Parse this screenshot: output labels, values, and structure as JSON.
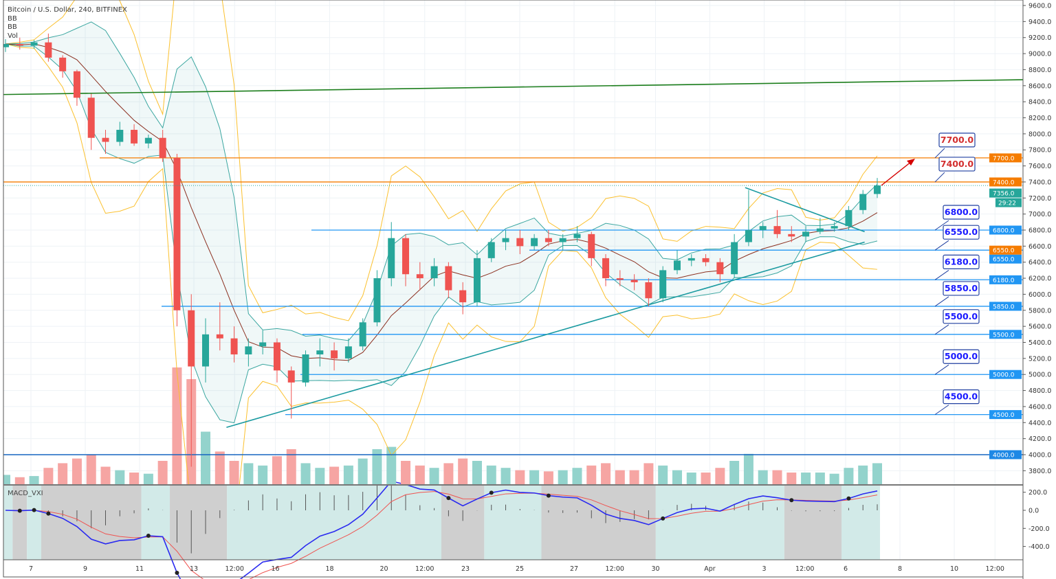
{
  "header": {
    "title": "Bitcoin / U.S. Dollar, 240, BITFINEX",
    "indicators": [
      "BB",
      "BB",
      "Vol"
    ],
    "macd_label": "MACD_VXI"
  },
  "colors": {
    "up": "#26a69a",
    "down": "#ef5350",
    "bb_basis": "#8b2f1f",
    "bb_inner": "#3aa6a0",
    "bb_outer": "#fbc02d",
    "resistance": "#f57c00",
    "support": "#2196f3",
    "trendline": "#1a9aa0",
    "long_trend": "#1b7d1b",
    "macd": "#2a2af0",
    "signal": "#ef5350",
    "arrow": "#d50000"
  },
  "price_axis": {
    "ticks": [
      "9600.0",
      "9400.0",
      "9200.0",
      "9000.0",
      "8800.0",
      "8600.0",
      "8400.0",
      "8200.0",
      "8000.0",
      "7800.0",
      "7600.0",
      "7400.0",
      "7200.0",
      "7000.0",
      "6800.0",
      "6600.0",
      "6400.0",
      "6200.0",
      "6000.0",
      "5800.0",
      "5600.0",
      "5400.0",
      "5200.0",
      "5000.0",
      "4800.0",
      "4600.0",
      "4400.0",
      "4200.0",
      "4000.0",
      "3800.0"
    ],
    "current_price": "7356.0",
    "countdown": "29:22"
  },
  "macd_axis": {
    "ticks": [
      "200.0",
      "0.0",
      "-200.0",
      "-400.0"
    ]
  },
  "time_axis": {
    "ticks": [
      {
        "label": "7",
        "day": 0
      },
      {
        "label": "9",
        "day": 2
      },
      {
        "label": "11",
        "day": 4
      },
      {
        "label": "13",
        "day": 6
      },
      {
        "label": "12:00",
        "day": 7.5
      },
      {
        "label": "16",
        "day": 9
      },
      {
        "label": "18",
        "day": 11
      },
      {
        "label": "20",
        "day": 13
      },
      {
        "label": "12:00",
        "day": 14.5
      },
      {
        "label": "23",
        "day": 16
      },
      {
        "label": "25",
        "day": 18
      },
      {
        "label": "27",
        "day": 20
      },
      {
        "label": "12:00",
        "day": 21.5
      },
      {
        "label": "30",
        "day": 23
      },
      {
        "label": "Apr",
        "day": 25
      },
      {
        "label": "3",
        "day": 27
      },
      {
        "label": "12:00",
        "day": 28.5
      },
      {
        "label": "6",
        "day": 30
      },
      {
        "label": "8",
        "day": 32
      },
      {
        "label": "10",
        "day": 34
      },
      {
        "label": "12:00",
        "day": 35.5
      }
    ]
  },
  "levels": [
    {
      "price": 7700,
      "label": "7700.0",
      "axis_label": "7700.0",
      "type": "resistance"
    },
    {
      "price": 7400,
      "label": "7400.0",
      "axis_label": "7400.0",
      "type": "resistance"
    },
    {
      "price": 6800,
      "label": "6800.0",
      "axis_label": "6800.0",
      "type": "support"
    },
    {
      "price": 6550,
      "label": "6550.0",
      "axis_label": "6550.0",
      "type": "support"
    },
    {
      "price": 6180,
      "label": "6180.0",
      "axis_label": "6180.0",
      "type": "support"
    },
    {
      "price": 5850,
      "label": "5850.0",
      "axis_label": "5850.0",
      "type": "support"
    },
    {
      "price": 5500,
      "label": "5500.0",
      "axis_label": "5500.0",
      "type": "support"
    },
    {
      "price": 5000,
      "label": "5000.0",
      "axis_label": "5000.0",
      "type": "support"
    },
    {
      "price": 4500,
      "label": "4500.0",
      "axis_label": "4500.0",
      "type": "support"
    },
    {
      "price": 4000,
      "label": "",
      "axis_label": "4000.0",
      "type": "major"
    }
  ],
  "extra_axis_tag": {
    "price": 6550,
    "label": "6550.0",
    "type": "resistance"
  },
  "chart_data": {
    "type": "candlestick",
    "title": "Bitcoin / U.S. Dollar, 240, BITFINEX",
    "ylim": [
      3700,
      9650
    ],
    "macd_ylim": [
      -500,
      270
    ],
    "grid": true,
    "candles": [
      [
        9080,
        9180,
        9020,
        9120
      ],
      [
        9120,
        9200,
        9050,
        9100
      ],
      [
        9100,
        9170,
        9060,
        9140
      ],
      [
        9140,
        9250,
        8900,
        8950
      ],
      [
        8950,
        8980,
        8700,
        8780
      ],
      [
        8780,
        8800,
        8350,
        8450
      ],
      [
        8450,
        8500,
        7800,
        7950
      ],
      [
        7950,
        8050,
        7750,
        7900
      ],
      [
        7900,
        8150,
        7850,
        8050
      ],
      [
        8050,
        8120,
        7850,
        7880
      ],
      [
        7880,
        7990,
        7820,
        7950
      ],
      [
        7950,
        8050,
        7650,
        7700
      ],
      [
        7700,
        7750,
        5600,
        5800
      ],
      [
        5800,
        6000,
        3850,
        5100
      ],
      [
        5100,
        5700,
        4900,
        5500
      ],
      [
        5500,
        5900,
        5300,
        5450
      ],
      [
        5450,
        5600,
        5150,
        5250
      ],
      [
        5250,
        5450,
        5100,
        5350
      ],
      [
        5350,
        5550,
        5250,
        5400
      ],
      [
        5400,
        5450,
        4900,
        5050
      ],
      [
        5050,
        5100,
        4450,
        4900
      ],
      [
        4900,
        5300,
        4850,
        5250
      ],
      [
        5250,
        5450,
        5100,
        5300
      ],
      [
        5300,
        5400,
        5050,
        5200
      ],
      [
        5200,
        5450,
        5150,
        5350
      ],
      [
        5350,
        5700,
        5300,
        5650
      ],
      [
        5650,
        6300,
        5600,
        6200
      ],
      [
        6200,
        6900,
        6100,
        6700
      ],
      [
        6700,
        6750,
        6100,
        6250
      ],
      [
        6250,
        6400,
        6050,
        6200
      ],
      [
        6200,
        6450,
        6100,
        6350
      ],
      [
        6350,
        6400,
        5950,
        6050
      ],
      [
        6050,
        6150,
        5750,
        5900
      ],
      [
        5900,
        6550,
        5850,
        6450
      ],
      [
        6450,
        6700,
        6400,
        6650
      ],
      [
        6650,
        6800,
        6550,
        6700
      ],
      [
        6700,
        6800,
        6500,
        6600
      ],
      [
        6600,
        6750,
        6550,
        6700
      ],
      [
        6700,
        6800,
        6600,
        6650
      ],
      [
        6650,
        6750,
        6550,
        6700
      ],
      [
        6700,
        6850,
        6650,
        6750
      ],
      [
        6750,
        6780,
        6350,
        6450
      ],
      [
        6450,
        6500,
        6100,
        6200
      ],
      [
        6200,
        6300,
        6100,
        6180
      ],
      [
        6180,
        6250,
        6050,
        6150
      ],
      [
        6150,
        6200,
        5850,
        5950
      ],
      [
        5950,
        6350,
        5900,
        6300
      ],
      [
        6300,
        6550,
        6250,
        6420
      ],
      [
        6420,
        6500,
        6350,
        6450
      ],
      [
        6450,
        6500,
        6350,
        6400
      ],
      [
        6400,
        6450,
        6150,
        6250
      ],
      [
        6250,
        6750,
        6200,
        6650
      ],
      [
        6650,
        7300,
        6600,
        6800
      ],
      [
        6800,
        6900,
        6700,
        6850
      ],
      [
        6850,
        7050,
        6700,
        6750
      ],
      [
        6750,
        6850,
        6650,
        6720
      ],
      [
        6720,
        6850,
        6650,
        6780
      ],
      [
        6780,
        6950,
        6750,
        6820
      ],
      [
        6820,
        6900,
        6780,
        6850
      ],
      [
        6850,
        7100,
        6800,
        7050
      ],
      [
        7050,
        7300,
        7000,
        7250
      ],
      [
        7250,
        7450,
        7200,
        7356
      ]
    ],
    "volume": [
      8,
      6,
      7,
      14,
      18,
      22,
      25,
      15,
      12,
      10,
      9,
      20,
      100,
      90,
      45,
      28,
      20,
      18,
      16,
      24,
      30,
      18,
      14,
      15,
      16,
      22,
      30,
      32,
      20,
      16,
      14,
      18,
      22,
      20,
      16,
      14,
      12,
      12,
      11,
      12,
      14,
      16,
      18,
      12,
      12,
      18,
      16,
      12,
      10,
      10,
      14,
      20,
      26,
      12,
      12,
      10,
      10,
      10,
      9,
      14,
      16,
      18
    ],
    "trendlines": [
      {
        "name": "long-trend",
        "from": [
          -1,
          8490
        ],
        "to": [
          37.6,
          8680
        ]
      },
      {
        "name": "ascending-support",
        "from": [
          7.2,
          4340
        ],
        "to": [
          30.7,
          6650
        ]
      },
      {
        "name": "descending-resistance",
        "from": [
          26.3,
          7330
        ],
        "to": [
          30.7,
          6780
        ]
      }
    ]
  }
}
